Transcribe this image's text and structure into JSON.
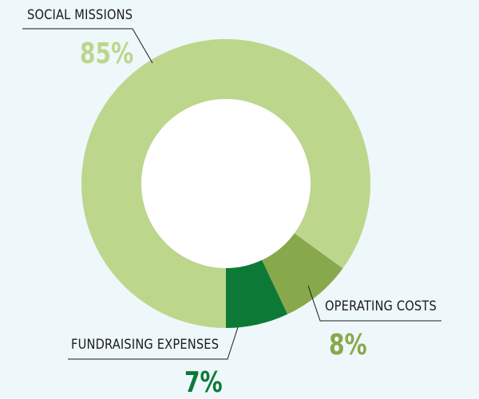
{
  "chart_data": {
    "type": "pie",
    "variant": "donut",
    "title": "",
    "slices": [
      {
        "label": "SOCIAL MISSIONS",
        "value": 85,
        "display": "85%",
        "color": "#bcd68c"
      },
      {
        "label": "OPERATING COSTS",
        "value": 8,
        "display": "8%",
        "color": "#88a84c"
      },
      {
        "label": "FUNDRAISING EXPENSES",
        "value": 7,
        "display": "7%",
        "color": "#0c7a36"
      }
    ],
    "colors": {
      "background": "#eef7f9",
      "hole": "#ffffff",
      "text": "#1c1c1c"
    }
  }
}
